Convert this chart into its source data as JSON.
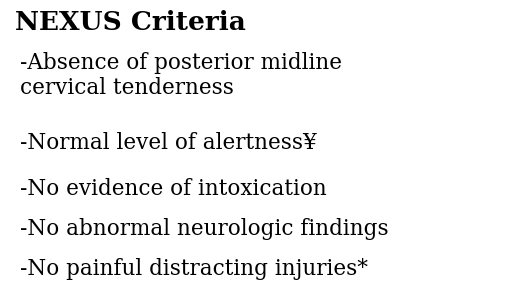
{
  "background_color": "#ffffff",
  "title": "NEXUS Criteria",
  "title_fontsize": 19,
  "items": [
    "-Absence of posterior midline\ncervical tenderness",
    "-Normal level of alertness¥",
    "-No evidence of intoxication",
    "-No abnormal neurologic findings",
    "-No painful distracting injuries*"
  ],
  "item_fontsize": 15.5,
  "text_color": "#000000",
  "font_family": "DejaVu Serif"
}
